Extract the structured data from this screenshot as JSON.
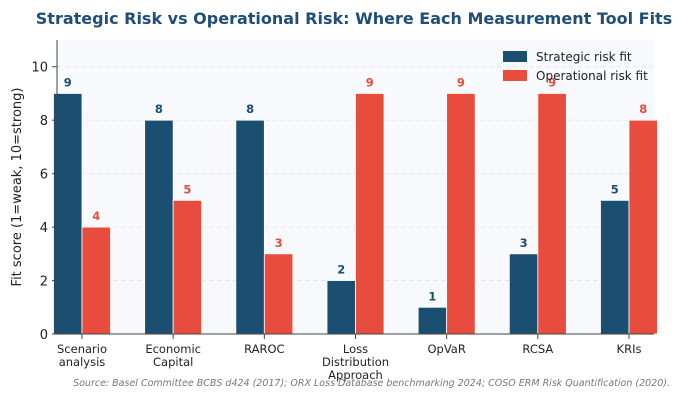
{
  "chart_data": {
    "type": "bar",
    "title": "Strategic Risk vs Operational Risk: Where Each Measurement Tool Fits",
    "xlabel": "",
    "ylabel": "Fit score (1=weak, 10=strong)",
    "ylim": [
      0,
      11
    ],
    "yticks": [
      0,
      2,
      4,
      6,
      8,
      10
    ],
    "grid": true,
    "legend_position": "top-right",
    "categories": [
      [
        "Scenario",
        "analysis"
      ],
      [
        "Economic",
        "Capital"
      ],
      [
        "RAROC"
      ],
      [
        "Loss",
        "Distribution",
        "Approach"
      ],
      [
        "OpVaR"
      ],
      [
        "RCSA"
      ],
      [
        "KRIs"
      ]
    ],
    "series": [
      {
        "name": "Strategic risk fit",
        "color": "#1b4f72",
        "values": [
          9,
          8,
          8,
          2,
          1,
          3,
          5
        ]
      },
      {
        "name": "Operational risk fit",
        "color": "#e74c3c",
        "values": [
          4,
          5,
          3,
          9,
          9,
          9,
          8
        ]
      }
    ],
    "source": "Source: Basel Committee BCBS d424 (2017); ORX Loss Database benchmarking 2024; COSO ERM Risk Quantification (2020)."
  }
}
